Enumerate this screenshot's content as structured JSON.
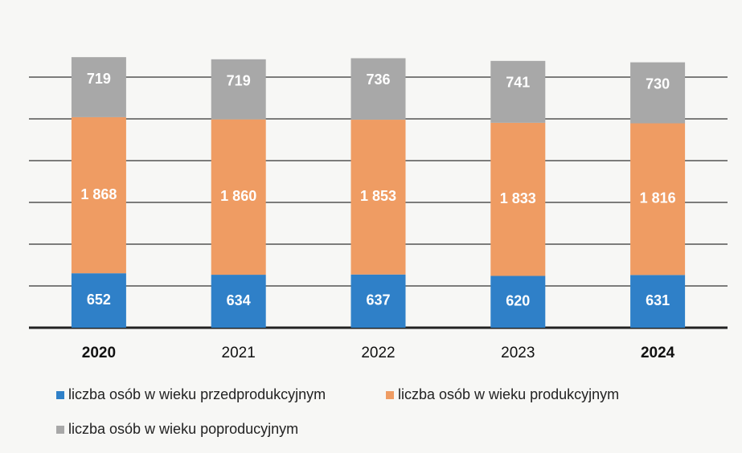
{
  "chart_data": {
    "type": "stacked_bar",
    "categories": [
      "2020",
      "2021",
      "2022",
      "2023",
      "2024"
    ],
    "series": [
      {
        "name": "liczba osób w wieku przedprodukcyjnym",
        "color": "#2f80c8",
        "values": [
          652,
          634,
          637,
          620,
          631
        ]
      },
      {
        "name": "liczba osób w wieku produkcyjnym",
        "color": "#ef9c63",
        "values": [
          1868,
          1860,
          1853,
          1833,
          1816
        ],
        "value_labels": [
          "1 868",
          "1 860",
          "1 853",
          "1 833",
          "1 816"
        ]
      },
      {
        "name": "liczba osób w wieku poproducyjnym",
        "color": "#a8a8a8",
        "values": [
          719,
          719,
          736,
          741,
          730
        ]
      }
    ],
    "ylim": [
      0,
      3500
    ],
    "yticks": [
      0,
      500,
      1000,
      1500,
      2000,
      2500,
      3000
    ],
    "grid": true
  }
}
